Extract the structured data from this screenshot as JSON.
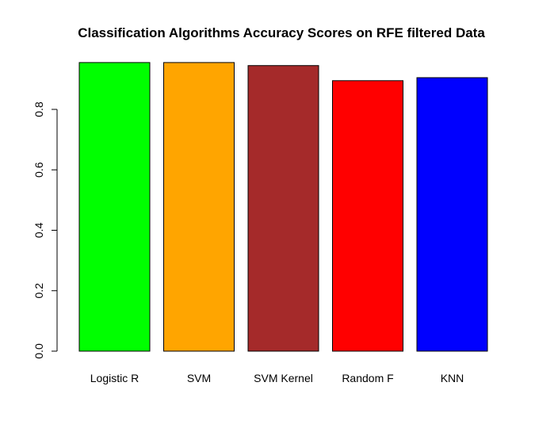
{
  "chart_data": {
    "type": "bar",
    "title": "Classification Algorithms Accuracy Scores on RFE filtered Data",
    "xlabel": "",
    "ylabel": "",
    "categories": [
      "Logistic R",
      "SVM",
      "SVM Kernel",
      "Random F",
      "KNN"
    ],
    "values": [
      0.955,
      0.955,
      0.945,
      0.895,
      0.905
    ],
    "colors": [
      "#00ff00",
      "#ffa500",
      "#a52a2a",
      "#ff0000",
      "#0000ff"
    ],
    "yticks": [
      "0.0",
      "0.2",
      "0.4",
      "0.6",
      "0.8"
    ],
    "ylim": [
      0,
      0.955
    ],
    "grid": false,
    "legend": "none"
  }
}
